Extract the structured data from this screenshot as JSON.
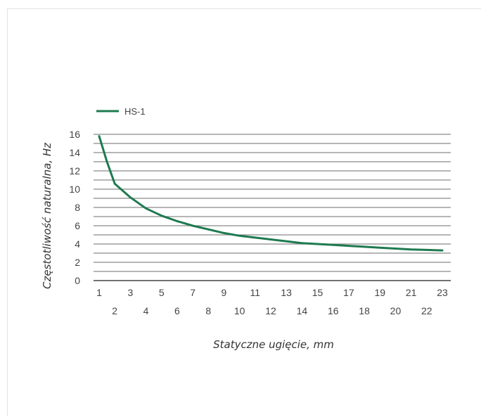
{
  "chart_data": {
    "type": "line",
    "title": "",
    "xlabel": "Statyczne ugięcie, mm",
    "ylabel": "Częstotliwość naturalna, Hz",
    "xlim": [
      1,
      23
    ],
    "ylim": [
      0,
      16
    ],
    "x_ticks_top": [
      "1",
      "3",
      "5",
      "7",
      "9",
      "11",
      "13",
      "15",
      "17",
      "19",
      "21",
      "23"
    ],
    "x_ticks_bottom": [
      "2",
      "4",
      "6",
      "8",
      "10",
      "12",
      "14",
      "16",
      "18",
      "20",
      "22"
    ],
    "y_ticks": [
      "0",
      "2",
      "4",
      "6",
      "8",
      "10",
      "12",
      "14",
      "16"
    ],
    "grid": "horizontal",
    "legend_position": "top-left",
    "colors": {
      "line": "#1e7a4f",
      "grid": "#8a8a8a",
      "axis": "#444444"
    },
    "series": [
      {
        "name": "HS-1",
        "x": [
          1,
          1.5,
          2,
          3,
          4,
          5,
          6,
          7,
          8,
          9,
          10,
          11,
          12,
          13,
          14,
          15,
          16,
          17,
          18,
          19,
          20,
          21,
          22,
          23
        ],
        "y": [
          15.8,
          13.0,
          10.6,
          9.1,
          7.9,
          7.1,
          6.5,
          6.0,
          5.6,
          5.2,
          4.9,
          4.7,
          4.5,
          4.3,
          4.1,
          4.0,
          3.9,
          3.8,
          3.7,
          3.6,
          3.5,
          3.4,
          3.35,
          3.3
        ]
      }
    ]
  }
}
